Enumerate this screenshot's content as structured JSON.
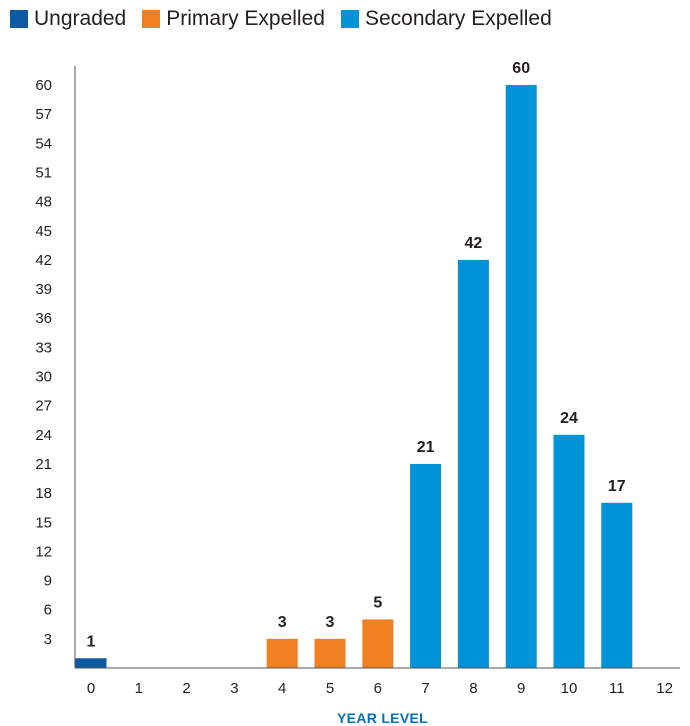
{
  "colors": {
    "ungraded": "#0b5aa2",
    "primary": "#f07f22",
    "secondary": "#0093d7",
    "axis": "#555555",
    "axis_title": "#0072bc"
  },
  "legend": {
    "items": [
      {
        "label": "Ungraded",
        "color": "#0b5aa2"
      },
      {
        "label": "Primary Expelled",
        "color": "#f07f22"
      },
      {
        "label": "Secondary Expelled",
        "color": "#0093d7"
      }
    ]
  },
  "chart_data": {
    "type": "bar",
    "title": "",
    "xlabel": "YEAR LEVEL",
    "ylabel": "",
    "categories": [
      "0",
      "1",
      "2",
      "3",
      "4",
      "5",
      "6",
      "7",
      "8",
      "9",
      "10",
      "11",
      "12"
    ],
    "ylim": [
      0,
      60
    ],
    "yticks": [
      3,
      6,
      9,
      12,
      15,
      18,
      21,
      24,
      27,
      30,
      33,
      36,
      39,
      42,
      45,
      48,
      51,
      54,
      57,
      60
    ],
    "legend_position": "top",
    "grid": false,
    "series": [
      {
        "name": "Ungraded",
        "color": "#0b5aa2",
        "values": [
          1,
          null,
          null,
          null,
          null,
          null,
          null,
          null,
          null,
          null,
          null,
          null,
          null
        ]
      },
      {
        "name": "Primary Expelled",
        "color": "#f07f22",
        "values": [
          null,
          null,
          null,
          null,
          3,
          3,
          5,
          null,
          null,
          null,
          null,
          null,
          null
        ]
      },
      {
        "name": "Secondary Expelled",
        "color": "#0093d7",
        "values": [
          null,
          null,
          null,
          null,
          null,
          null,
          null,
          21,
          42,
          60,
          24,
          17,
          null
        ]
      }
    ]
  }
}
